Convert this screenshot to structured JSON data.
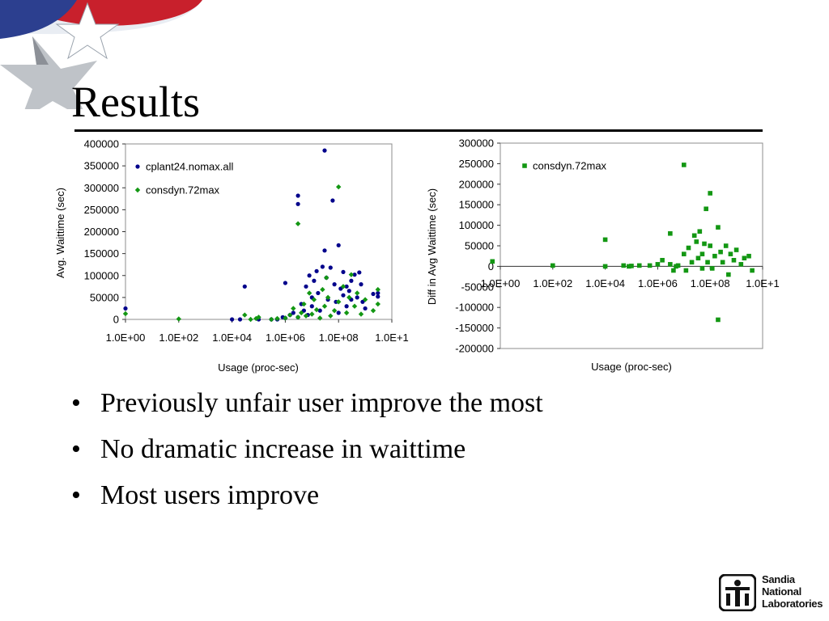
{
  "slide": {
    "title": "Results",
    "bullets": [
      "Previously unfair user improve the most",
      "No dramatic increase in waittime",
      "Most users improve"
    ],
    "logo_lines": [
      "Sandia",
      "National",
      "Laboratories"
    ]
  },
  "colors": {
    "cplant_series": "#00008b",
    "consdyn_series": "#139713",
    "title_rule": "#000000"
  },
  "chart_data": [
    {
      "type": "scatter",
      "xscale": "log",
      "xlim": [
        1,
        10000000000
      ],
      "ylim": [
        0,
        400000
      ],
      "xlabel": "Usage (proc-sec)",
      "ylabel": "Avg. Waittime (sec)",
      "xticks": [
        "1.0E+00",
        "1.0E+02",
        "1.0E+04",
        "1.0E+06",
        "1.0E+08",
        "1.0E+1"
      ],
      "yticks": [
        "0",
        "50000",
        "100000",
        "150000",
        "200000",
        "250000",
        "300000",
        "350000",
        "400000"
      ],
      "legend": "top-left",
      "series": [
        {
          "name": "cplant24.nomax.all",
          "marker": "circle",
          "points": [
            [
              1.0,
              25000
            ],
            [
              30000.0,
              75000
            ],
            [
              10000.0,
              0
            ],
            [
              20000.0,
              0
            ],
            [
              100000.0,
              0
            ],
            [
              300000.0,
              0
            ],
            [
              500000.0,
              0
            ],
            [
              800000.0,
              5000
            ],
            [
              1000000.0,
              3000
            ],
            [
              1000000.0,
              83000
            ],
            [
              1500000.0,
              10000
            ],
            [
              2000000.0,
              15000
            ],
            [
              3000000.0,
              5000
            ],
            [
              3000000.0,
              263000
            ],
            [
              3000000.0,
              282000
            ],
            [
              4000000.0,
              35000
            ],
            [
              5000000.0,
              20000
            ],
            [
              6000000.0,
              75000
            ],
            [
              7000000.0,
              10000
            ],
            [
              8000000.0,
              100000
            ],
            [
              10000000.0,
              30000
            ],
            [
              10000000.0,
              50000
            ],
            [
              12000000.0,
              88000
            ],
            [
              15000000.0,
              110000
            ],
            [
              17000000.0,
              60000
            ],
            [
              20000000.0,
              20000
            ],
            [
              25000000.0,
              120000
            ],
            [
              30000000.0,
              385000
            ],
            [
              30000000.0,
              157000
            ],
            [
              35000000.0,
              95000
            ],
            [
              40000000.0,
              45000
            ],
            [
              50000000.0,
              118000
            ],
            [
              60000000.0,
              271000
            ],
            [
              70000000.0,
              80000
            ],
            [
              80000000.0,
              40000
            ],
            [
              100000000.0,
              169000
            ],
            [
              100000000.0,
              15000
            ],
            [
              120000000.0,
              70000
            ],
            [
              150000000.0,
              108000
            ],
            [
              150000000.0,
              55000
            ],
            [
              200000000.0,
              75000
            ],
            [
              200000000.0,
              30000
            ],
            [
              250000000.0,
              65000
            ],
            [
              300000000.0,
              88000
            ],
            [
              300000000.0,
              45000
            ],
            [
              400000000.0,
              102000
            ],
            [
              500000000.0,
              50000
            ],
            [
              600000000.0,
              107000
            ],
            [
              700000000.0,
              80000
            ],
            [
              800000000.0,
              40000
            ],
            [
              1000000000.0,
              25000
            ],
            [
              2000000000.0,
              58000
            ],
            [
              3000000000.0,
              60000
            ],
            [
              3000000000.0,
              52000
            ]
          ]
        },
        {
          "name": "consdyn.72max",
          "marker": "diamond",
          "points": [
            [
              1.0,
              13000
            ],
            [
              100.0,
              1000
            ],
            [
              30000.0,
              10000
            ],
            [
              50000.0,
              0
            ],
            [
              80000.0,
              2000
            ],
            [
              100000.0,
              5000
            ],
            [
              300000.0,
              0
            ],
            [
              500000.0,
              2000
            ],
            [
              1000000.0,
              3000
            ],
            [
              1500000.0,
              10000
            ],
            [
              2000000.0,
              25000
            ],
            [
              3000000.0,
              5000
            ],
            [
              3000000.0,
              218000
            ],
            [
              4000000.0,
              15000
            ],
            [
              5000000.0,
              35000
            ],
            [
              6000000.0,
              8000
            ],
            [
              8000000.0,
              60000
            ],
            [
              10000000.0,
              12000
            ],
            [
              12000000.0,
              45000
            ],
            [
              15000000.0,
              22000
            ],
            [
              20000000.0,
              3000
            ],
            [
              25000000.0,
              68000
            ],
            [
              30000000.0,
              30000
            ],
            [
              35000000.0,
              95000
            ],
            [
              40000000.0,
              50000
            ],
            [
              50000000.0,
              8000
            ],
            [
              70000000.0,
              20000
            ],
            [
              100000000.0,
              302000
            ],
            [
              100000000.0,
              40000
            ],
            [
              150000000.0,
              75000
            ],
            [
              200000000.0,
              15000
            ],
            [
              250000000.0,
              50000
            ],
            [
              300000000.0,
              102000
            ],
            [
              400000000.0,
              30000
            ],
            [
              500000000.0,
              60000
            ],
            [
              700000000.0,
              12000
            ],
            [
              1000000000.0,
              45000
            ],
            [
              2000000000.0,
              20000
            ],
            [
              3000000000.0,
              68000
            ],
            [
              3000000000.0,
              35000
            ]
          ]
        }
      ]
    },
    {
      "type": "scatter",
      "xscale": "log",
      "xlim": [
        1,
        10000000000
      ],
      "ylim": [
        -200000,
        300000
      ],
      "xlabel": "Usage (proc-sec)",
      "ylabel": "Diff in Avg Waittime (sec)",
      "xticks": [
        "1.0E+00",
        "1.0E+02",
        "1.0E+04",
        "1.0E+06",
        "1.0E+08",
        "1.0E+1"
      ],
      "yticks": [
        "-200000",
        "-150000",
        "-100000",
        "-50000",
        "0",
        "50000",
        "100000",
        "150000",
        "200000",
        "250000",
        "300000"
      ],
      "legend": "top-left",
      "series": [
        {
          "name": "consdyn.72max",
          "marker": "square",
          "points": [
            [
              0.5,
              12000
            ],
            [
              100.0,
              2000
            ],
            [
              10000.0,
              65000
            ],
            [
              10000.0,
              0
            ],
            [
              50000.0,
              2000
            ],
            [
              80000.0,
              0
            ],
            [
              100000.0,
              1000
            ],
            [
              200000.0,
              2000
            ],
            [
              500000.0,
              2000
            ],
            [
              1000000.0,
              5000
            ],
            [
              1500000.0,
              15000
            ],
            [
              3000000.0,
              80000
            ],
            [
              3000000.0,
              5000
            ],
            [
              4000000.0,
              -10000
            ],
            [
              5000000.0,
              0
            ],
            [
              6000000.0,
              2000
            ],
            [
              10000000.0,
              247000
            ],
            [
              10000000.0,
              30000
            ],
            [
              12000000.0,
              -10000
            ],
            [
              15000000.0,
              45000
            ],
            [
              20000000.0,
              10000
            ],
            [
              25000000.0,
              75000
            ],
            [
              30000000.0,
              60000
            ],
            [
              35000000.0,
              20000
            ],
            [
              40000000.0,
              85000
            ],
            [
              50000000.0,
              30000
            ],
            [
              50000000.0,
              -5000
            ],
            [
              60000000.0,
              55000
            ],
            [
              70000000.0,
              140000
            ],
            [
              80000000.0,
              10000
            ],
            [
              100000000.0,
              178000
            ],
            [
              100000000.0,
              50000
            ],
            [
              120000000.0,
              -5000
            ],
            [
              150000000.0,
              25000
            ],
            [
              200000000.0,
              -130000
            ],
            [
              200000000.0,
              95000
            ],
            [
              250000000.0,
              35000
            ],
            [
              300000000.0,
              10000
            ],
            [
              400000000.0,
              50000
            ],
            [
              500000000.0,
              -20000
            ],
            [
              600000000.0,
              30000
            ],
            [
              800000000.0,
              15000
            ],
            [
              1000000000.0,
              40000
            ],
            [
              1500000000.0,
              5000
            ],
            [
              2000000000.0,
              20000
            ],
            [
              3000000000.0,
              25000
            ],
            [
              4000000000.0,
              -10000
            ]
          ]
        }
      ]
    }
  ]
}
